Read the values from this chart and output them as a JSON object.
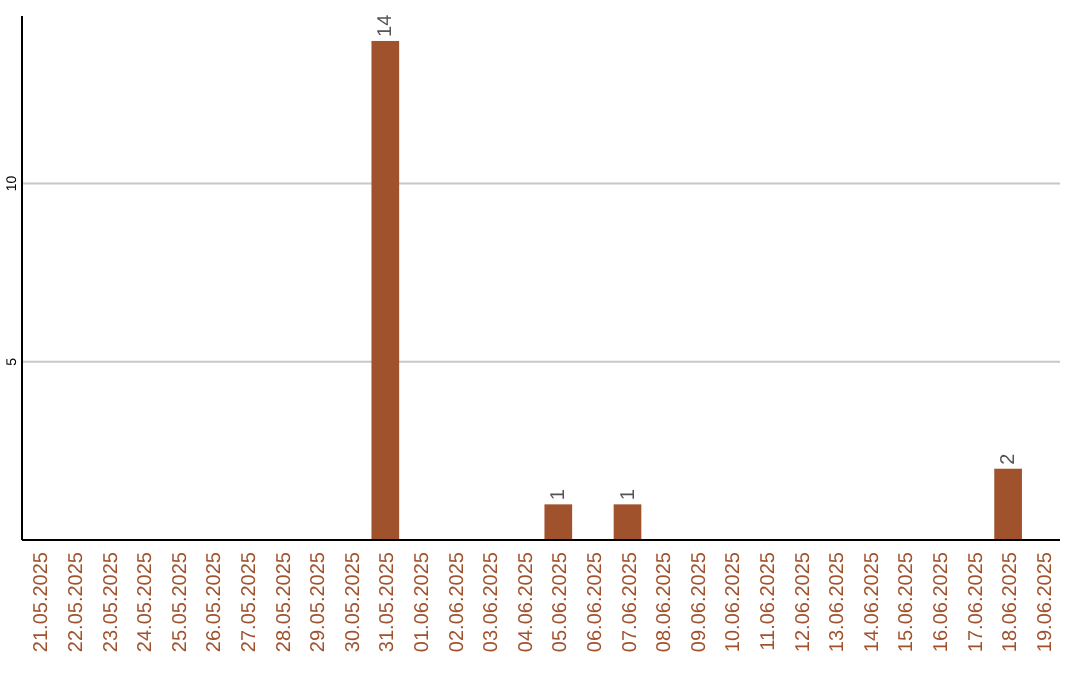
{
  "chart_data": {
    "type": "bar",
    "categories": [
      "21.05.2025",
      "22.05.2025",
      "23.05.2025",
      "24.05.2025",
      "25.05.2025",
      "26.05.2025",
      "27.05.2025",
      "28.05.2025",
      "29.05.2025",
      "30.05.2025",
      "31.05.2025",
      "01.06.2025",
      "02.06.2025",
      "03.06.2025",
      "04.06.2025",
      "05.06.2025",
      "06.06.2025",
      "07.06.2025",
      "08.06.2025",
      "09.06.2025",
      "10.06.2025",
      "11.06.2025",
      "12.06.2025",
      "13.06.2025",
      "14.06.2025",
      "15.06.2025",
      "16.06.2025",
      "17.06.2025",
      "18.06.2025",
      "19.06.2025"
    ],
    "values": [
      0,
      0,
      0,
      0,
      0,
      0,
      0,
      0,
      0,
      0,
      14,
      0,
      0,
      0,
      0,
      1,
      0,
      1,
      0,
      0,
      0,
      0,
      0,
      0,
      0,
      0,
      0,
      0,
      2,
      0
    ],
    "value_labels": [
      null,
      null,
      null,
      null,
      null,
      null,
      null,
      null,
      null,
      null,
      "14",
      null,
      null,
      null,
      null,
      "1",
      null,
      "1",
      null,
      null,
      null,
      null,
      null,
      null,
      null,
      null,
      null,
      null,
      "2",
      null
    ],
    "color": "#a0522d",
    "ylim": [
      0,
      14.7
    ],
    "yticks": [
      5,
      10
    ],
    "grid": "y"
  }
}
